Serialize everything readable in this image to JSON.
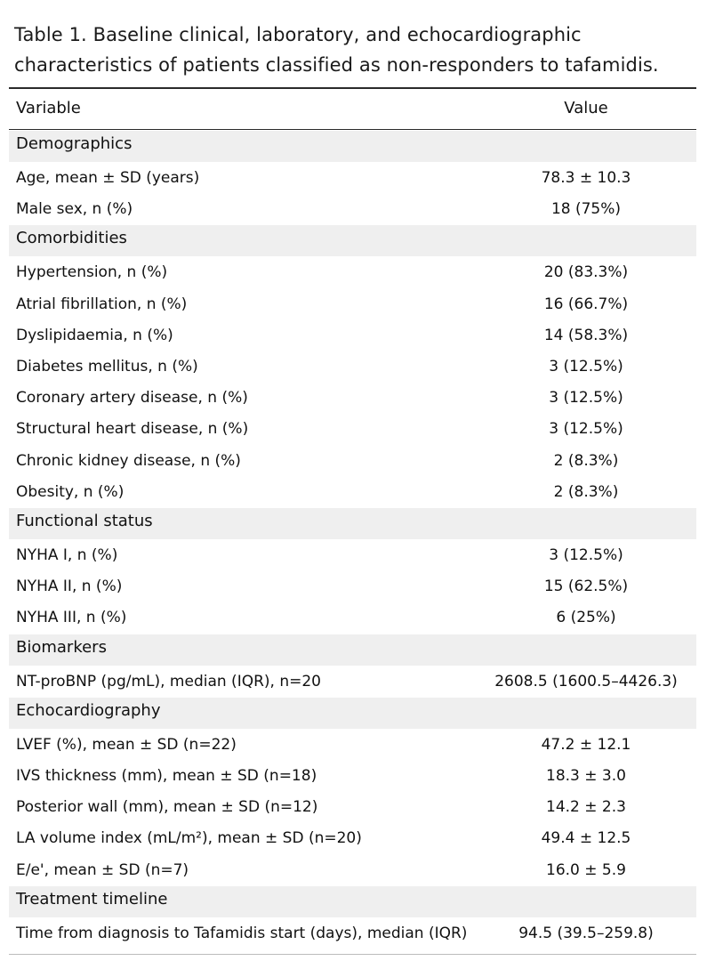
{
  "caption": {
    "line1": "Table 1. Baseline clinical, laboratory, and echocardiographic",
    "line2": "characteristics of patients classified as non-responders to tafamidis."
  },
  "header": {
    "variable": "Variable",
    "value": "Value"
  },
  "rows": [
    {
      "kind": "section",
      "label": "Demographics"
    },
    {
      "kind": "data",
      "label": "Age, mean ± SD (years)",
      "value": "78.3 ± 10.3"
    },
    {
      "kind": "data",
      "label": "Male sex, n (%)",
      "value": "18 (75%)"
    },
    {
      "kind": "section",
      "label": "Comorbidities"
    },
    {
      "kind": "data",
      "label": "Hypertension, n (%)",
      "value": "20 (83.3%)"
    },
    {
      "kind": "data",
      "label": "Atrial fibrillation, n (%)",
      "value": "16 (66.7%)"
    },
    {
      "kind": "data",
      "label": "Dyslipidaemia, n (%)",
      "value": "14 (58.3%)"
    },
    {
      "kind": "data",
      "label": "Diabetes mellitus, n (%)",
      "value": "3 (12.5%)"
    },
    {
      "kind": "data",
      "label": "Coronary artery disease, n (%)",
      "value": "3 (12.5%)"
    },
    {
      "kind": "data",
      "label": "Structural heart disease, n (%)",
      "value": "3 (12.5%)"
    },
    {
      "kind": "data",
      "label": "Chronic kidney disease, n (%)",
      "value": "2 (8.3%)"
    },
    {
      "kind": "data",
      "label": "Obesity, n (%)",
      "value": "2 (8.3%)"
    },
    {
      "kind": "section",
      "label": "Functional status"
    },
    {
      "kind": "data",
      "label": "NYHA I, n (%)",
      "value": "3 (12.5%)"
    },
    {
      "kind": "data",
      "label": "NYHA II, n (%)",
      "value": "15 (62.5%)"
    },
    {
      "kind": "data",
      "label": "NYHA III, n (%)",
      "value": "6 (25%)"
    },
    {
      "kind": "section",
      "label": "Biomarkers"
    },
    {
      "kind": "data",
      "label": "NT-proBNP (pg/mL), median (IQR), n=20",
      "value": "2608.5 (1600.5–4426.3)"
    },
    {
      "kind": "section",
      "label": "Echocardiography"
    },
    {
      "kind": "data",
      "label": "LVEF (%), mean ± SD (n=22)",
      "value": "47.2 ± 12.1"
    },
    {
      "kind": "data",
      "label": "IVS thickness (mm), mean ± SD  (n=18)",
      "value": "18.3 ± 3.0"
    },
    {
      "kind": "data",
      "label": "Posterior wall (mm), mean ± SD (n=12)",
      "value": "14.2 ± 2.3"
    },
    {
      "kind": "data",
      "label": "LA volume index (mL/m²), mean ± SD (n=20)",
      "value": "49.4 ± 12.5"
    },
    {
      "kind": "data",
      "label": "E/e', mean ± SD (n=7)",
      "value": "16.0 ± 5.9"
    },
    {
      "kind": "section",
      "label": "Treatment timeline"
    },
    {
      "kind": "data",
      "label": "Time from diagnosis to Tafamidis start (days), median (IQR)",
      "value": "94.5 (39.5–259.8)"
    }
  ]
}
